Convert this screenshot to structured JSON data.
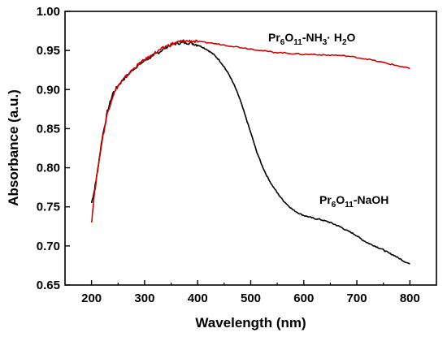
{
  "chart_data": {
    "type": "line",
    "xlabel": "Wavelength (nm)",
    "ylabel": "Absorbance (a.u.)",
    "xlim": [
      150,
      850
    ],
    "ylim": [
      0.65,
      1.0
    ],
    "xticks": [
      200,
      300,
      400,
      500,
      600,
      700,
      800
    ],
    "yticks": [
      0.65,
      0.7,
      0.75,
      0.8,
      0.85,
      0.9,
      0.95,
      1.0
    ],
    "xtick_labels": [
      "200",
      "300",
      "400",
      "500",
      "600",
      "700",
      "800"
    ],
    "ytick_labels": [
      "0.65",
      "0.70",
      "0.75",
      "0.80",
      "0.85",
      "0.90",
      "0.95",
      "1.00"
    ],
    "grid": false,
    "series": [
      {
        "name": "Pr6O11-NaOH",
        "label_parts": [
          "Pr",
          "6",
          "O",
          "11",
          "-NaOH",
          ""
        ],
        "color": "#000000",
        "x": [
          200,
          205,
          210,
          220,
          230,
          240,
          250,
          260,
          270,
          280,
          290,
          300,
          310,
          320,
          330,
          340,
          350,
          360,
          370,
          380,
          390,
          400,
          410,
          420,
          430,
          440,
          450,
          460,
          470,
          480,
          490,
          500,
          510,
          520,
          530,
          540,
          550,
          560,
          570,
          580,
          590,
          600,
          610,
          620,
          630,
          640,
          650,
          660,
          670,
          680,
          690,
          700,
          710,
          720,
          730,
          740,
          750,
          760,
          770,
          780,
          790,
          800
        ],
        "y": [
          0.755,
          0.77,
          0.79,
          0.838,
          0.872,
          0.895,
          0.905,
          0.913,
          0.92,
          0.927,
          0.932,
          0.937,
          0.941,
          0.945,
          0.949,
          0.954,
          0.957,
          0.959,
          0.96,
          0.96,
          0.959,
          0.957,
          0.954,
          0.95,
          0.945,
          0.938,
          0.929,
          0.918,
          0.904,
          0.887,
          0.866,
          0.845,
          0.823,
          0.805,
          0.79,
          0.778,
          0.768,
          0.759,
          0.752,
          0.746,
          0.742,
          0.739,
          0.737,
          0.735,
          0.734,
          0.732,
          0.73,
          0.727,
          0.724,
          0.72,
          0.717,
          0.713,
          0.708,
          0.704,
          0.701,
          0.698,
          0.695,
          0.691,
          0.688,
          0.684,
          0.68,
          0.677
        ]
      },
      {
        "name": "Pr6O11-NH3· H2O",
        "label_parts": [
          "Pr",
          "6",
          "O",
          "11",
          "-NH",
          "3",
          "·  H",
          "2",
          "O",
          ""
        ],
        "color": "#d40000",
        "x": [
          200,
          205,
          210,
          220,
          230,
          240,
          250,
          260,
          270,
          280,
          290,
          300,
          310,
          320,
          330,
          340,
          350,
          360,
          370,
          380,
          390,
          400,
          420,
          440,
          460,
          480,
          500,
          520,
          540,
          560,
          580,
          600,
          620,
          640,
          660,
          680,
          700,
          720,
          740,
          760,
          780,
          800
        ],
        "y": [
          0.73,
          0.765,
          0.79,
          0.835,
          0.87,
          0.892,
          0.905,
          0.913,
          0.92,
          0.927,
          0.933,
          0.938,
          0.942,
          0.947,
          0.951,
          0.955,
          0.958,
          0.96,
          0.962,
          0.962,
          0.962,
          0.961,
          0.96,
          0.958,
          0.956,
          0.954,
          0.952,
          0.95,
          0.948,
          0.947,
          0.946,
          0.945,
          0.945,
          0.944,
          0.944,
          0.943,
          0.941,
          0.939,
          0.936,
          0.933,
          0.93,
          0.927
        ]
      }
    ]
  }
}
